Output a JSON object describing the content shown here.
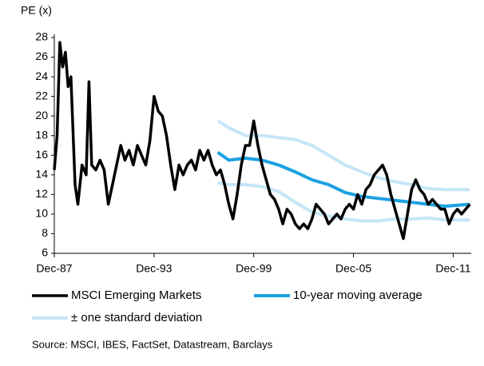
{
  "chart_data": {
    "type": "line",
    "y_axis_title": "PE (x)",
    "xlim": [
      "1987-12",
      "2013-01"
    ],
    "xticks": [
      {
        "value": "1987-12",
        "label": "Dec-87"
      },
      {
        "value": "1993-12",
        "label": "Dec-93"
      },
      {
        "value": "1999-12",
        "label": "Dec-99"
      },
      {
        "value": "2005-12",
        "label": "Dec-05"
      },
      {
        "value": "2011-12",
        "label": "Dec-11"
      }
    ],
    "ylim": [
      6,
      28
    ],
    "yticks": [
      6,
      8,
      10,
      12,
      14,
      16,
      18,
      20,
      22,
      24,
      26,
      28
    ],
    "grid": false,
    "series": [
      {
        "name": "MSCI Emerging Markets",
        "color": "#000000",
        "width": 3.5,
        "x": [
          "1987-12",
          "1988-02",
          "1988-04",
          "1988-06",
          "1988-08",
          "1988-10",
          "1988-12",
          "1989-03",
          "1989-05",
          "1989-08",
          "1989-11",
          "1990-01",
          "1990-03",
          "1990-06",
          "1990-09",
          "1990-12",
          "1991-03",
          "1991-06",
          "1991-09",
          "1991-12",
          "1992-03",
          "1992-06",
          "1992-09",
          "1992-12",
          "1993-03",
          "1993-06",
          "1993-09",
          "1993-12",
          "1994-03",
          "1994-06",
          "1994-09",
          "1994-12",
          "1995-03",
          "1995-06",
          "1995-09",
          "1995-12",
          "1996-03",
          "1996-06",
          "1996-09",
          "1996-12",
          "1997-03",
          "1997-06",
          "1997-09",
          "1997-12",
          "1998-03",
          "1998-06",
          "1998-09",
          "1998-12",
          "1999-03",
          "1999-06",
          "1999-09",
          "1999-12",
          "2000-03",
          "2000-06",
          "2000-09",
          "2000-12",
          "2001-03",
          "2001-06",
          "2001-09",
          "2001-12",
          "2002-03",
          "2002-06",
          "2002-09",
          "2002-12",
          "2003-03",
          "2003-06",
          "2003-09",
          "2003-12",
          "2004-03",
          "2004-06",
          "2004-09",
          "2004-12",
          "2005-03",
          "2005-06",
          "2005-09",
          "2005-12",
          "2006-03",
          "2006-06",
          "2006-09",
          "2006-12",
          "2007-03",
          "2007-06",
          "2007-09",
          "2007-12",
          "2008-03",
          "2008-06",
          "2008-09",
          "2008-12",
          "2009-03",
          "2009-06",
          "2009-09",
          "2009-12",
          "2010-03",
          "2010-06",
          "2010-09",
          "2010-12",
          "2011-03",
          "2011-06",
          "2011-09",
          "2011-12",
          "2012-03",
          "2012-06",
          "2012-09",
          "2012-12"
        ],
        "values": [
          14.5,
          18,
          27.5,
          25,
          26.5,
          23,
          24,
          13,
          11,
          15,
          14,
          23.5,
          15,
          14.5,
          15.5,
          14.5,
          11,
          13,
          15,
          17,
          15.5,
          16.5,
          15,
          17,
          16,
          15,
          17.5,
          22,
          20.5,
          20,
          18,
          15,
          12.5,
          15,
          14,
          15,
          15.5,
          14.5,
          16.5,
          15.5,
          16.5,
          15,
          14,
          14.5,
          13,
          11,
          9.5,
          12,
          15,
          17,
          17,
          19.5,
          17,
          15,
          13.5,
          12,
          11.5,
          10.5,
          9,
          10.5,
          10,
          9,
          8.5,
          9,
          8.5,
          9.5,
          11,
          10.5,
          10,
          9,
          9.5,
          10,
          9.5,
          10.5,
          11,
          10.5,
          12,
          11,
          12.5,
          13,
          14,
          14.5,
          15,
          14,
          12,
          10.5,
          9,
          7.5,
          10,
          12.5,
          13.5,
          12.5,
          12,
          11,
          11.5,
          11,
          10.5,
          10.5,
          9,
          10,
          10.5,
          10,
          10.5,
          11
        ]
      },
      {
        "name": "10-year moving average",
        "color": "#1ba1e2",
        "width": 4,
        "x": [
          "1997-10",
          "1998-06",
          "1999-06",
          "2000-06",
          "2001-06",
          "2002-06",
          "2003-06",
          "2004-06",
          "2005-06",
          "2006-06",
          "2007-06",
          "2008-06",
          "2009-06",
          "2010-06",
          "2011-06",
          "2012-12"
        ],
        "values": [
          16.3,
          15.5,
          15.7,
          15.5,
          15,
          14.3,
          13.5,
          13,
          12.2,
          11.8,
          11.6,
          11.4,
          11.2,
          11,
          10.8,
          11
        ]
      },
      {
        "name": "± one standard deviation",
        "color": "#c6e6f7",
        "width": 4,
        "x": [
          "1997-10",
          "1998-06",
          "1999-06",
          "2000-06",
          "2001-06",
          "2002-06",
          "2003-06",
          "2004-06",
          "2005-06",
          "2006-06",
          "2007-06",
          "2008-06",
          "2009-06",
          "2010-06",
          "2011-06",
          "2012-12"
        ],
        "values": [
          19.5,
          18.8,
          18,
          18,
          17.8,
          17.6,
          17,
          16,
          15,
          14.3,
          13.7,
          13.3,
          13,
          12.6,
          12.5,
          12.5
        ],
        "lower": [
          13.2,
          13,
          13,
          12.8,
          12.3,
          11.2,
          10.2,
          9.8,
          9.5,
          9.3,
          9.3,
          9.5,
          9.5,
          9.6,
          9.4,
          9.4
        ]
      }
    ],
    "source": "Source: MSCI, IBES, FactSet, Datastream, Barclays"
  }
}
